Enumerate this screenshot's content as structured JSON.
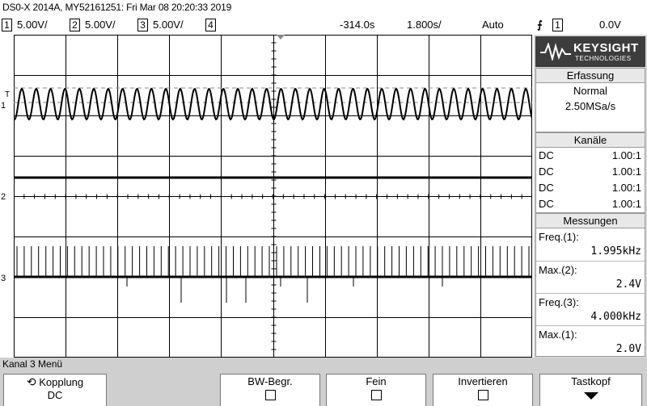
{
  "header": {
    "title": "DS0-X 2014A, MY52161251: Fri Mar 08 20:20:33 2019"
  },
  "status": {
    "channels": [
      {
        "num": "1",
        "scale": "5.00V/"
      },
      {
        "num": "2",
        "scale": "5.00V/"
      },
      {
        "num": "3",
        "scale": "5.00V/"
      },
      {
        "num": "4",
        "scale": ""
      }
    ],
    "delay": "-314.0s",
    "timebase": "1.800s/",
    "trigger_mode": "Auto",
    "trigger_source": "1",
    "trigger_level": "0.0V"
  },
  "logo": {
    "brand": "KEYSIGHT",
    "sub": "TECHNOLOGIES"
  },
  "acquisition": {
    "heading": "Erfassung",
    "mode": "Normal",
    "rate": "2.50MSa/s"
  },
  "channels_panel": {
    "heading": "Kanäle",
    "rows": [
      {
        "coupling": "DC",
        "probe": "1.00:1"
      },
      {
        "coupling": "DC",
        "probe": "1.00:1"
      },
      {
        "coupling": "DC",
        "probe": "1.00:1"
      },
      {
        "coupling": "DC",
        "probe": "1.00:1"
      }
    ]
  },
  "measurements": {
    "heading": "Messungen",
    "items": [
      {
        "label": "Freq.(1):",
        "value": "1.995kHz"
      },
      {
        "label": "Max.(2):",
        "value": "2.4V"
      },
      {
        "label": "Freq.(3):",
        "value": "4.000kHz"
      },
      {
        "label": "Max.(1):",
        "value": "2.0V"
      }
    ]
  },
  "menu": {
    "title": "Kanal 3 Menü",
    "softkeys": [
      {
        "label": "Kopplung",
        "value": "DC"
      },
      {
        "label": "BW-Begr.",
        "value": ""
      },
      {
        "label": "Fein",
        "value": ""
      },
      {
        "label": "Invertieren",
        "value": ""
      },
      {
        "label": "Tastkopf",
        "value": ""
      }
    ]
  },
  "waveforms": {
    "ch1_cycles": 36,
    "ch3_pulses": 72,
    "colors": {
      "trace": "#000000",
      "grid": "#000000",
      "dash": "#888888"
    }
  }
}
